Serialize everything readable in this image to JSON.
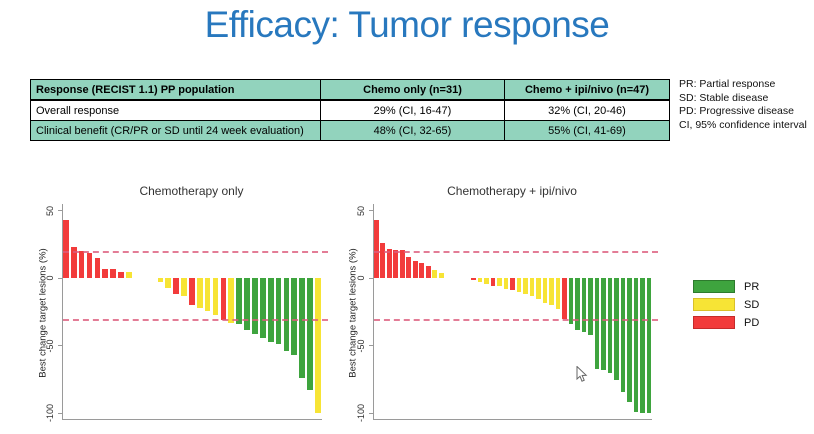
{
  "title": "Efficacy: Tumor response",
  "colors": {
    "title_blue": "#2878BE",
    "table_teal": "#92D3BD",
    "dashed_line": "#DD5C7C",
    "axis_gray": "#9A9A9A",
    "status": {
      "PR": "#3EA43E",
      "SD": "#F7E435",
      "PD": "#F23B3B"
    },
    "status_border": {
      "PR": "#2D7A2D",
      "SD": "#D9C02A",
      "PD": "#C52B2B"
    }
  },
  "table": {
    "headers": [
      "Response (RECIST 1.1) PP population",
      "Chemo only (n=31)",
      "Chemo + ipi/nivo (n=47)"
    ],
    "rows": [
      [
        "Overall response",
        "29% (CI, 16-47)",
        "32% (CI, 20-46)"
      ],
      [
        "Clinical benefit (CR/PR or SD until 24 week evaluation)",
        "48% (CI, 32-65)",
        "55% (CI, 41-69)"
      ]
    ]
  },
  "abbreviations": [
    "PR: Partial response",
    "SD: Stable disease",
    "PD: Progressive disease",
    "CI, 95% confidence interval"
  ],
  "legend": [
    {
      "label": "PR",
      "color": "#3EA43E",
      "border": "#2D7A2D"
    },
    {
      "label": "SD",
      "color": "#F7E435",
      "border": "#D9C02A"
    },
    {
      "label": "PD",
      "color": "#F23B3B",
      "border": "#C52B2B"
    }
  ],
  "icons": {
    "pointer": "mouse-cursor"
  },
  "chart_data": [
    {
      "type": "bar",
      "variant": "waterfall",
      "title": "Chemotherapy only",
      "xlabel": "",
      "ylabel": "Best change target lesions (%)",
      "ylim": [
        -105,
        55
      ],
      "yticks": [
        50,
        0,
        -50,
        -100
      ],
      "reference_lines": [
        20,
        -30
      ],
      "grid": false,
      "legend_position": "right-of-figure",
      "gap_before": 9,
      "gap_slots": 3,
      "bars": [
        {
          "v": 43,
          "s": "PD"
        },
        {
          "v": 23,
          "s": "PD"
        },
        {
          "v": 20,
          "s": "PD"
        },
        {
          "v": 19,
          "s": "PD"
        },
        {
          "v": 15,
          "s": "PD"
        },
        {
          "v": 7,
          "s": "PD"
        },
        {
          "v": 7,
          "s": "PD"
        },
        {
          "v": 5,
          "s": "PD"
        },
        {
          "v": 5,
          "s": "SD"
        },
        {
          "v": -3,
          "s": "SD"
        },
        {
          "v": -7,
          "s": "SD"
        },
        {
          "v": -12,
          "s": "PD"
        },
        {
          "v": -13,
          "s": "SD"
        },
        {
          "v": -20,
          "s": "PD"
        },
        {
          "v": -22,
          "s": "SD"
        },
        {
          "v": -24,
          "s": "SD"
        },
        {
          "v": -27,
          "s": "SD"
        },
        {
          "v": -31,
          "s": "PD"
        },
        {
          "v": -33,
          "s": "SD"
        },
        {
          "v": -34,
          "s": "PR"
        },
        {
          "v": -38,
          "s": "PR"
        },
        {
          "v": -41,
          "s": "PR"
        },
        {
          "v": -44,
          "s": "PR"
        },
        {
          "v": -47,
          "s": "PR"
        },
        {
          "v": -49,
          "s": "PR"
        },
        {
          "v": -54,
          "s": "PR"
        },
        {
          "v": -57,
          "s": "PR"
        },
        {
          "v": -74,
          "s": "PR"
        },
        {
          "v": -83,
          "s": "PR"
        },
        {
          "v": -100,
          "s": "SD"
        }
      ]
    },
    {
      "type": "bar",
      "variant": "waterfall",
      "title": "Chemotherapy + ipi/nivo",
      "xlabel": "",
      "ylabel": "Best change target lesions (%)",
      "ylim": [
        -105,
        55
      ],
      "yticks": [
        50,
        0,
        -50,
        -100
      ],
      "reference_lines": [
        20,
        -30
      ],
      "grid": false,
      "legend_position": "right-of-figure",
      "gap_before": 11,
      "gap_slots": 4,
      "bars": [
        {
          "v": 43,
          "s": "PD"
        },
        {
          "v": 26,
          "s": "PD"
        },
        {
          "v": 22,
          "s": "PD"
        },
        {
          "v": 21,
          "s": "PD"
        },
        {
          "v": 21,
          "s": "PD"
        },
        {
          "v": 16,
          "s": "PD"
        },
        {
          "v": 13,
          "s": "PD"
        },
        {
          "v": 11,
          "s": "PD"
        },
        {
          "v": 9,
          "s": "PD"
        },
        {
          "v": 6,
          "s": "SD"
        },
        {
          "v": 4,
          "s": "SD"
        },
        {
          "v": -1,
          "s": "PD"
        },
        {
          "v": -3,
          "s": "SD"
        },
        {
          "v": -4,
          "s": "SD"
        },
        {
          "v": -6,
          "s": "PD"
        },
        {
          "v": -6,
          "s": "SD"
        },
        {
          "v": -8,
          "s": "SD"
        },
        {
          "v": -9,
          "s": "PD"
        },
        {
          "v": -10,
          "s": "SD"
        },
        {
          "v": -12,
          "s": "SD"
        },
        {
          "v": -13,
          "s": "SD"
        },
        {
          "v": -15,
          "s": "SD"
        },
        {
          "v": -18,
          "s": "SD"
        },
        {
          "v": -20,
          "s": "SD"
        },
        {
          "v": -23,
          "s": "SD"
        },
        {
          "v": -30,
          "s": "PD"
        },
        {
          "v": -34,
          "s": "PR"
        },
        {
          "v": -38,
          "s": "PR"
        },
        {
          "v": -40,
          "s": "PR"
        },
        {
          "v": -42,
          "s": "PR"
        },
        {
          "v": -67,
          "s": "PR"
        },
        {
          "v": -68,
          "s": "PR"
        },
        {
          "v": -70,
          "s": "PR"
        },
        {
          "v": -75,
          "s": "PR"
        },
        {
          "v": -84,
          "s": "PR"
        },
        {
          "v": -92,
          "s": "PR"
        },
        {
          "v": -99,
          "s": "PR"
        },
        {
          "v": -100,
          "s": "PR"
        },
        {
          "v": -100,
          "s": "PR"
        }
      ]
    }
  ]
}
